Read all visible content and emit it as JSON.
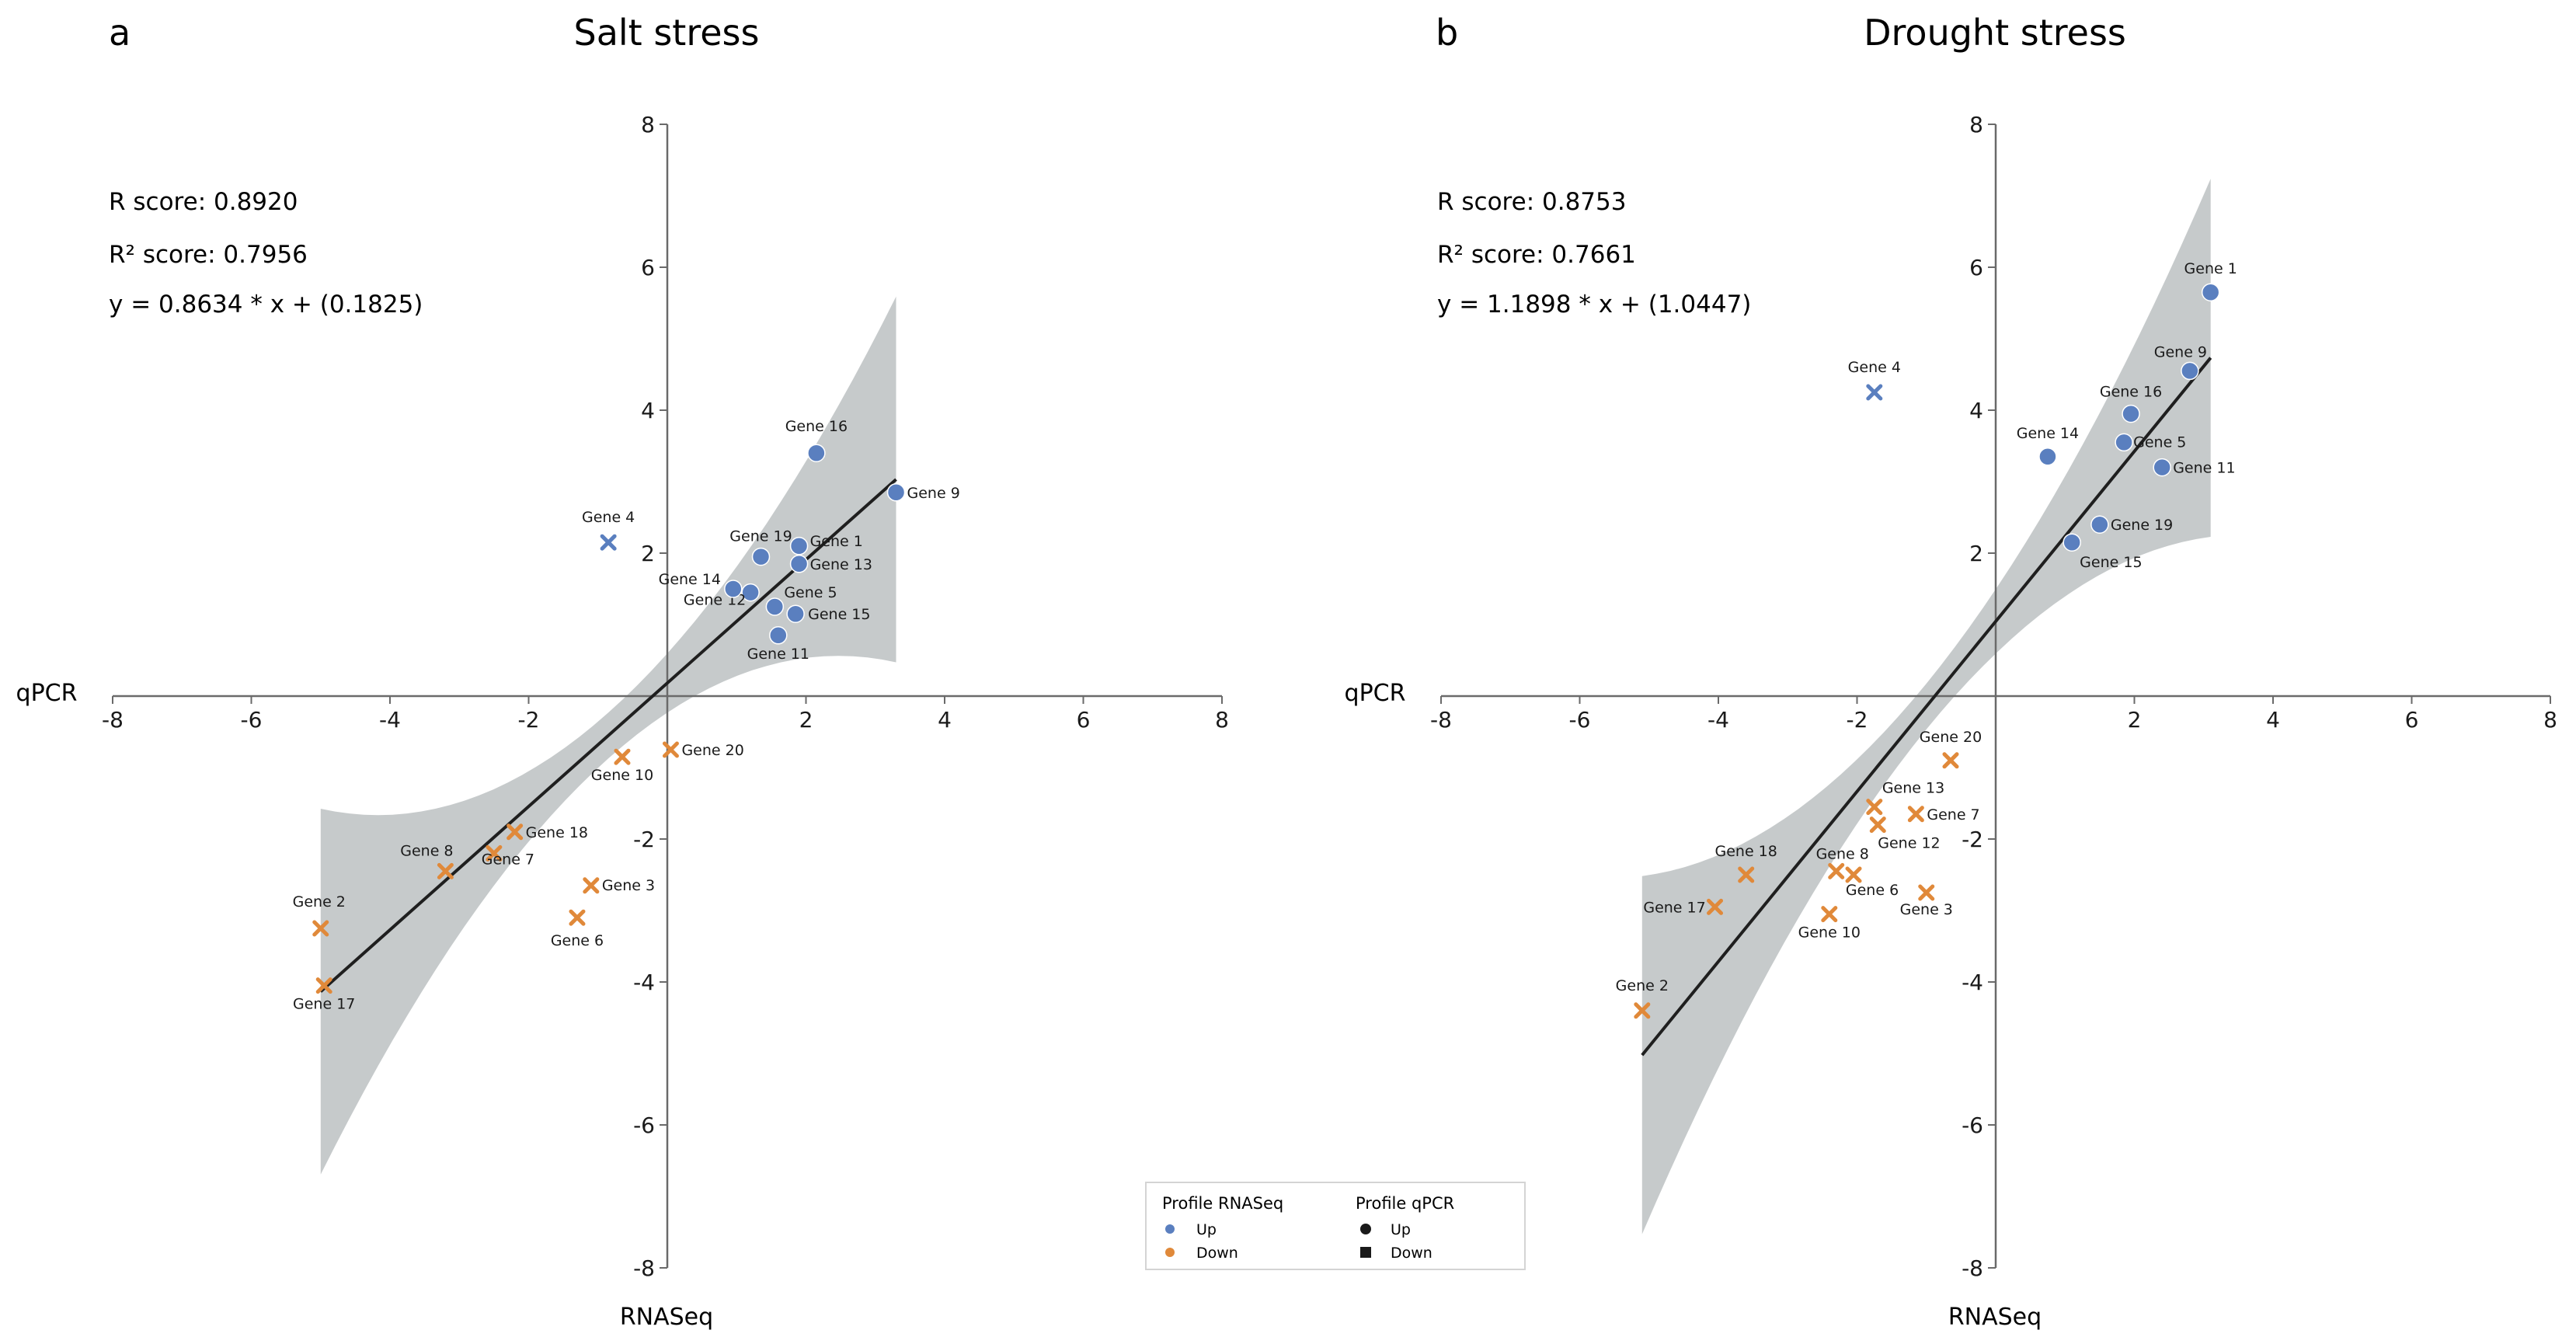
{
  "colors": {
    "up": "#5a7fbf",
    "down": "#e0893a",
    "line": "#1f1f1f",
    "band": "#bcc1c2",
    "axis": "#6a6a6a"
  },
  "legend": {
    "title_rnaseq": "Profile RNASeq",
    "title_qpcr": "Profile qPCR",
    "up": "Up",
    "down": "Down"
  },
  "chart_data": [
    {
      "type": "scatter",
      "panel_letter": "a",
      "title": "Salt stress",
      "xlabel": "RNASeq",
      "ylabel": "qPCR",
      "xlim": [
        -8,
        8
      ],
      "ylim": [
        -8,
        8
      ],
      "xticks": [
        -8,
        -6,
        -4,
        -2,
        0,
        2,
        4,
        6,
        8
      ],
      "yticks": [
        -8,
        -6,
        -4,
        -2,
        0,
        2,
        4,
        6,
        8
      ],
      "stats": {
        "r": "R score: 0.8920",
        "r2": "R² score: 0.7956",
        "eq": "y = 0.8634 * x + (0.1825)"
      },
      "fit": {
        "slope": 0.8634,
        "intercept": 0.1825,
        "xrange": [
          -5.0,
          3.3
        ]
      },
      "points": [
        {
          "label": "Gene 1",
          "x": 1.9,
          "y": 2.1,
          "rnaseq": "up",
          "qpcr": "up"
        },
        {
          "label": "Gene 2",
          "x": -5.0,
          "y": -3.25,
          "rnaseq": "down",
          "qpcr": "down"
        },
        {
          "label": "Gene 3",
          "x": -1.1,
          "y": -2.65,
          "rnaseq": "down",
          "qpcr": "down"
        },
        {
          "label": "Gene 4",
          "x": -0.85,
          "y": 2.15,
          "rnaseq": "up",
          "qpcr": "down"
        },
        {
          "label": "Gene 5",
          "x": 1.55,
          "y": 1.25,
          "rnaseq": "up",
          "qpcr": "up"
        },
        {
          "label": "Gene 6",
          "x": -1.3,
          "y": -3.1,
          "rnaseq": "down",
          "qpcr": "down"
        },
        {
          "label": "Gene 7",
          "x": -2.5,
          "y": -2.2,
          "rnaseq": "down",
          "qpcr": "down"
        },
        {
          "label": "Gene 8",
          "x": -3.2,
          "y": -2.45,
          "rnaseq": "down",
          "qpcr": "down"
        },
        {
          "label": "Gene 9",
          "x": 3.3,
          "y": 2.85,
          "rnaseq": "up",
          "qpcr": "up"
        },
        {
          "label": "Gene 10",
          "x": -0.65,
          "y": -0.85,
          "rnaseq": "down",
          "qpcr": "down"
        },
        {
          "label": "Gene 11",
          "x": 1.6,
          "y": 0.85,
          "rnaseq": "up",
          "qpcr": "up"
        },
        {
          "label": "Gene 12",
          "x": 1.2,
          "y": 1.45,
          "rnaseq": "up",
          "qpcr": "up"
        },
        {
          "label": "Gene 13",
          "x": 1.9,
          "y": 1.85,
          "rnaseq": "up",
          "qpcr": "up"
        },
        {
          "label": "Gene 14",
          "x": 0.95,
          "y": 1.5,
          "rnaseq": "up",
          "qpcr": "up"
        },
        {
          "label": "Gene 15",
          "x": 1.85,
          "y": 1.15,
          "rnaseq": "up",
          "qpcr": "up"
        },
        {
          "label": "Gene 16",
          "x": 2.15,
          "y": 3.4,
          "rnaseq": "up",
          "qpcr": "up"
        },
        {
          "label": "Gene 17",
          "x": -4.95,
          "y": -4.05,
          "rnaseq": "down",
          "qpcr": "down"
        },
        {
          "label": "Gene 18",
          "x": -2.2,
          "y": -1.9,
          "rnaseq": "down",
          "qpcr": "down"
        },
        {
          "label": "Gene 19",
          "x": 1.35,
          "y": 1.95,
          "rnaseq": "up",
          "qpcr": "up"
        },
        {
          "label": "Gene 20",
          "x": 0.05,
          "y": -0.75,
          "rnaseq": "down",
          "qpcr": "down"
        }
      ]
    },
    {
      "type": "scatter",
      "panel_letter": "b",
      "title": "Drought stress",
      "xlabel": "RNASeq",
      "ylabel": "qPCR",
      "xlim": [
        -8,
        8
      ],
      "ylim": [
        -8,
        8
      ],
      "xticks": [
        -8,
        -6,
        -4,
        -2,
        0,
        2,
        4,
        6,
        8
      ],
      "yticks": [
        -8,
        -6,
        -4,
        -2,
        0,
        2,
        4,
        6,
        8
      ],
      "stats": {
        "r": "R score: 0.8753",
        "r2": "R² score: 0.7661",
        "eq": "y = 1.1898 * x + (1.0447)"
      },
      "fit": {
        "slope": 1.1898,
        "intercept": 1.0447,
        "xrange": [
          -5.1,
          3.1
        ]
      },
      "points": [
        {
          "label": "Gene 1",
          "x": 3.1,
          "y": 5.65,
          "rnaseq": "up",
          "qpcr": "up"
        },
        {
          "label": "Gene 2",
          "x": -5.1,
          "y": -4.4,
          "rnaseq": "down",
          "qpcr": "down"
        },
        {
          "label": "Gene 3",
          "x": -1.0,
          "y": -2.75,
          "rnaseq": "down",
          "qpcr": "down"
        },
        {
          "label": "Gene 4",
          "x": -1.75,
          "y": 4.25,
          "rnaseq": "up",
          "qpcr": "down"
        },
        {
          "label": "Gene 5",
          "x": 1.85,
          "y": 3.55,
          "rnaseq": "up",
          "qpcr": "up"
        },
        {
          "label": "Gene 6",
          "x": -2.05,
          "y": -2.5,
          "rnaseq": "down",
          "qpcr": "down"
        },
        {
          "label": "Gene 7",
          "x": -1.15,
          "y": -1.65,
          "rnaseq": "down",
          "qpcr": "down"
        },
        {
          "label": "Gene 8",
          "x": -2.3,
          "y": -2.45,
          "rnaseq": "down",
          "qpcr": "down"
        },
        {
          "label": "Gene 9",
          "x": 2.8,
          "y": 4.55,
          "rnaseq": "up",
          "qpcr": "up"
        },
        {
          "label": "Gene 10",
          "x": -2.4,
          "y": -3.05,
          "rnaseq": "down",
          "qpcr": "down"
        },
        {
          "label": "Gene 11",
          "x": 2.4,
          "y": 3.2,
          "rnaseq": "up",
          "qpcr": "up"
        },
        {
          "label": "Gene 12",
          "x": -1.7,
          "y": -1.8,
          "rnaseq": "down",
          "qpcr": "down"
        },
        {
          "label": "Gene 13",
          "x": -1.75,
          "y": -1.55,
          "rnaseq": "down",
          "qpcr": "down"
        },
        {
          "label": "Gene 14",
          "x": 0.75,
          "y": 3.35,
          "rnaseq": "up",
          "qpcr": "up"
        },
        {
          "label": "Gene 15",
          "x": 1.1,
          "y": 2.15,
          "rnaseq": "up",
          "qpcr": "up"
        },
        {
          "label": "Gene 16",
          "x": 1.95,
          "y": 3.95,
          "rnaseq": "up",
          "qpcr": "up"
        },
        {
          "label": "Gene 17",
          "x": -4.05,
          "y": -2.95,
          "rnaseq": "down",
          "qpcr": "down"
        },
        {
          "label": "Gene 18",
          "x": -3.6,
          "y": -2.5,
          "rnaseq": "down",
          "qpcr": "down"
        },
        {
          "label": "Gene 19",
          "x": 1.5,
          "y": 2.4,
          "rnaseq": "up",
          "qpcr": "up"
        },
        {
          "label": "Gene 20",
          "x": -0.65,
          "y": -0.9,
          "rnaseq": "down",
          "qpcr": "down"
        }
      ]
    }
  ]
}
